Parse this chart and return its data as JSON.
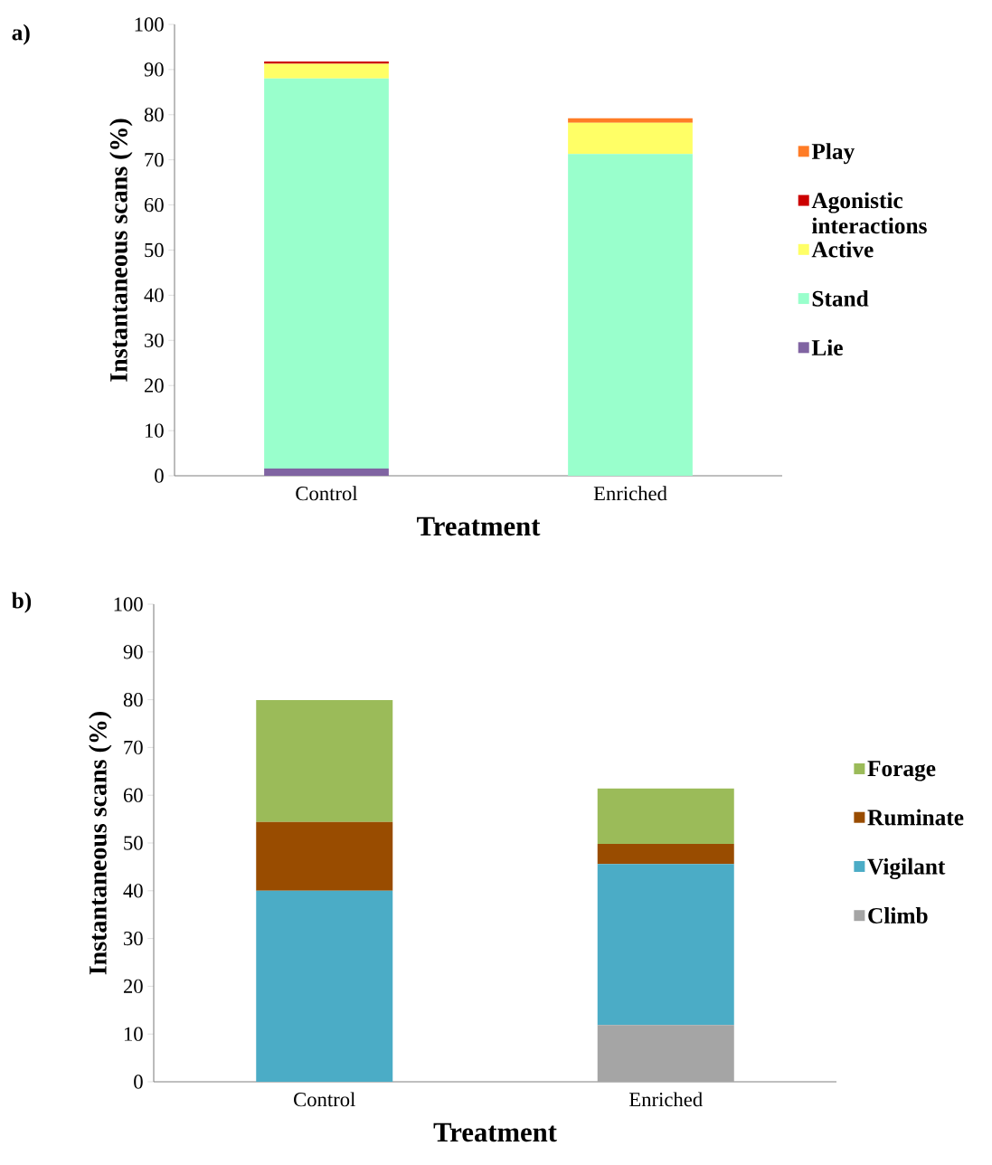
{
  "chart_data": [
    {
      "type": "bar",
      "title": "a)",
      "xlabel": "Treatment",
      "ylabel": "Instantaneous scans (%)",
      "stacked": true,
      "legend": "right",
      "categories": [
        "Control",
        "Enriched"
      ],
      "series": [
        {
          "name": "Lie",
          "color": "#8064a2",
          "values": [
            1.6,
            0
          ]
        },
        {
          "name": "Stand",
          "color": "#99ffcc",
          "values": [
            86.4,
            71.3
          ]
        },
        {
          "name": "Active",
          "color": "#ffff66",
          "values": [
            3.3,
            6.9
          ]
        },
        {
          "name": "Agonistic interactions",
          "color": "#cc0000",
          "values": [
            0.5,
            0
          ]
        },
        {
          "name": "Play",
          "color": "#ff7c26",
          "values": [
            0,
            1.0
          ]
        }
      ],
      "ylim": [
        0,
        100
      ],
      "yticks": [
        0,
        10,
        20,
        30,
        40,
        50,
        60,
        70,
        80,
        90,
        100
      ]
    },
    {
      "type": "bar",
      "title": "b)",
      "xlabel": "Treatment",
      "ylabel": "Instantaneous scans (%)",
      "stacked": true,
      "legend": "right",
      "categories": [
        "Control",
        "Enriched"
      ],
      "series": [
        {
          "name": "Climb",
          "color": "#a5a5a5",
          "values": [
            0,
            11.9
          ]
        },
        {
          "name": "Vigilant",
          "color": "#4bacc6",
          "values": [
            40.0,
            33.7
          ]
        },
        {
          "name": "Ruminate",
          "color": "#994c00",
          "values": [
            14.4,
            4.2
          ]
        },
        {
          "name": "Forage",
          "color": "#9bbb59",
          "values": [
            25.5,
            11.6
          ]
        }
      ],
      "ylim": [
        0,
        100
      ],
      "yticks": [
        0,
        10,
        20,
        30,
        40,
        50,
        60,
        70,
        80,
        90,
        100
      ]
    }
  ]
}
